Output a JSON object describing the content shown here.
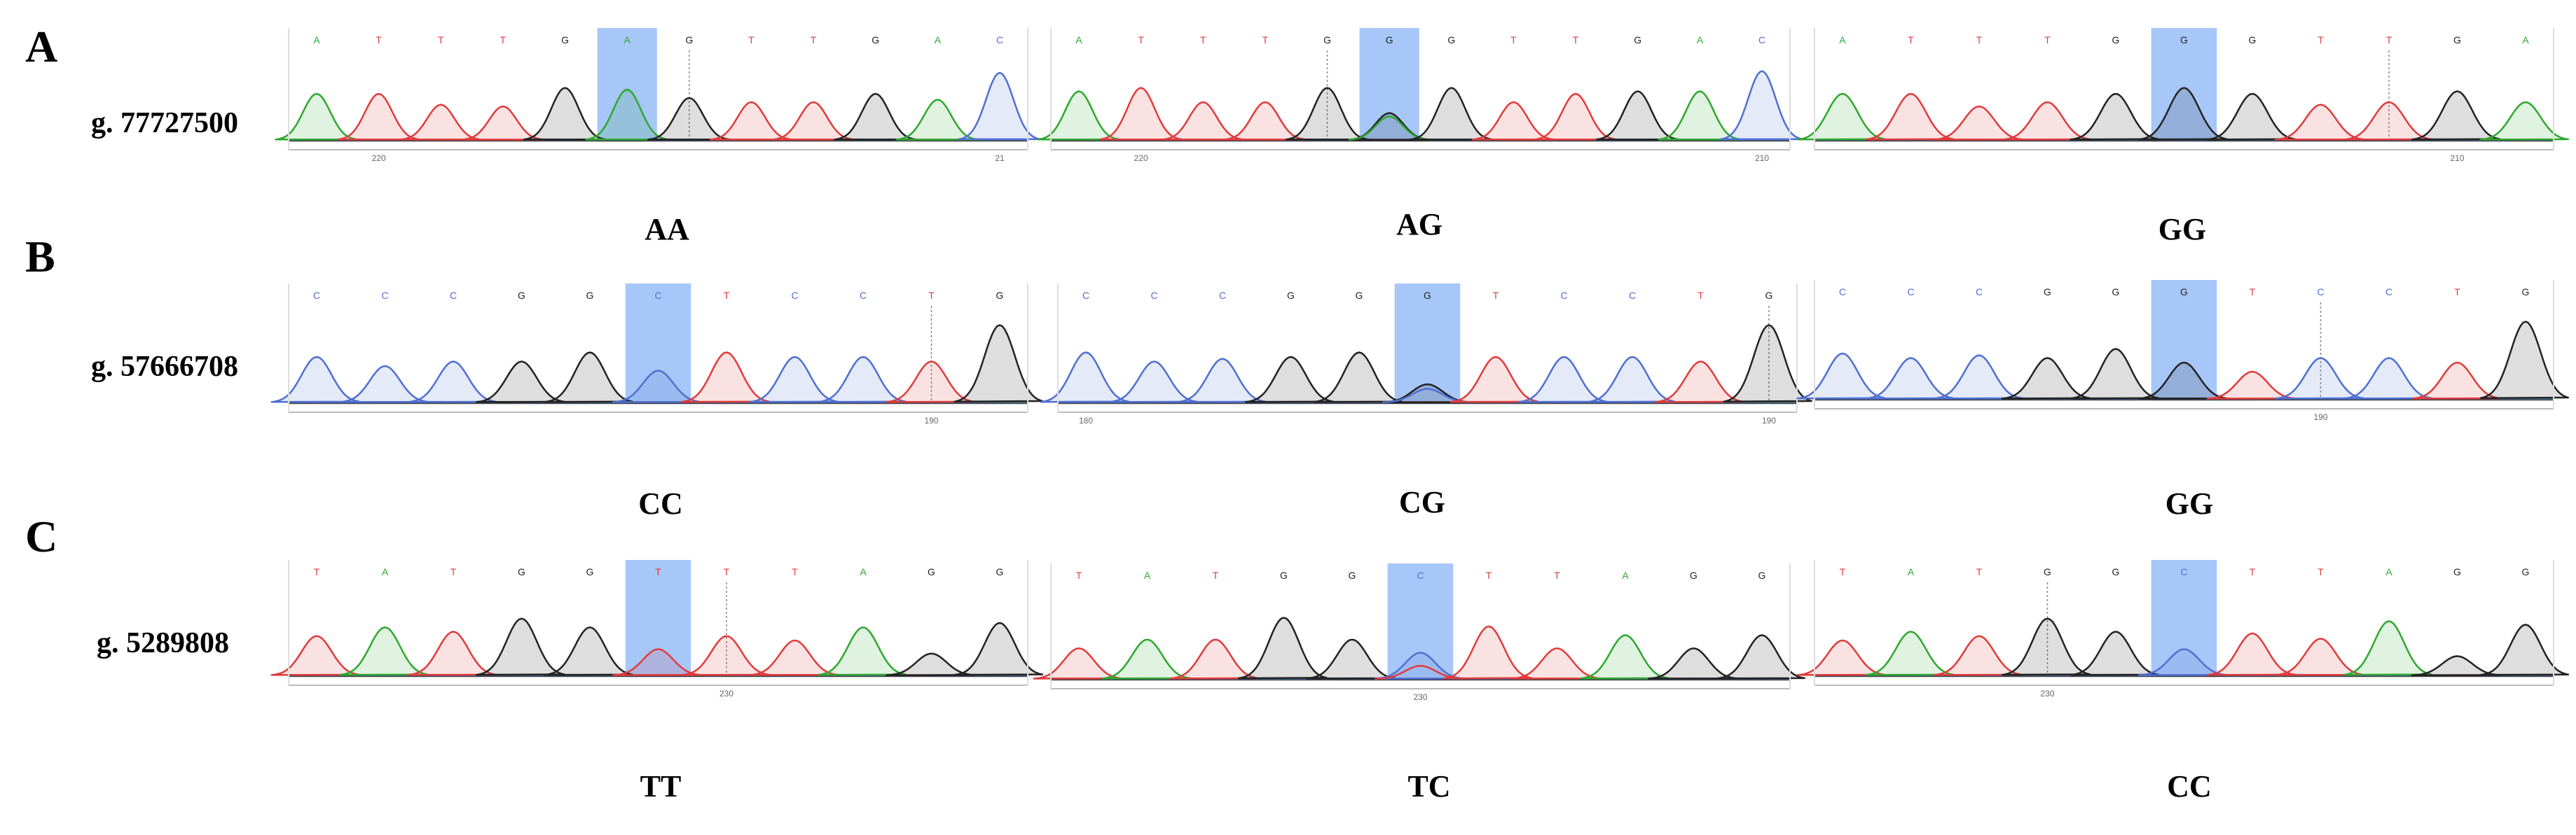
{
  "colors": {
    "A": "#2ea82e",
    "C": "#4f6fd1",
    "G": "#222222",
    "T": "#e03b3b",
    "highlight": "#8ab4f5"
  },
  "rows": [
    {
      "letter": "A",
      "locus": "g. 77727500",
      "chromatograms": [
        {
          "genotype": "AA",
          "bases": [
            "A",
            "T",
            "T",
            "T",
            "G",
            "A",
            "G",
            "T",
            "T",
            "G",
            "A",
            "C"
          ],
          "highlight_index": 5,
          "dotted_index": 6,
          "ticks": [
            {
              "index": 1,
              "label": "220"
            },
            {
              "index": 11,
              "label": "21"
            }
          ],
          "peaks": [
            {
              "base": "A",
              "h": 0.55
            },
            {
              "base": "T",
              "h": 0.55
            },
            {
              "base": "T",
              "h": 0.42
            },
            {
              "base": "T",
              "h": 0.4
            },
            {
              "base": "G",
              "h": 0.62
            },
            {
              "base": "A",
              "h": 0.6
            },
            {
              "base": "G",
              "h": 0.5
            },
            {
              "base": "T",
              "h": 0.45
            },
            {
              "base": "T",
              "h": 0.45
            },
            {
              "base": "G",
              "h": 0.55
            },
            {
              "base": "A",
              "h": 0.48
            },
            {
              "base": "C",
              "h": 0.8
            }
          ]
        },
        {
          "genotype": "AG",
          "bases": [
            "A",
            "T",
            "T",
            "T",
            "G",
            "G",
            "G",
            "T",
            "T",
            "G",
            "A",
            "C"
          ],
          "highlight_index": 5,
          "dotted_index": 4,
          "ticks": [
            {
              "index": 1,
              "label": "220"
            },
            {
              "index": 11,
              "label": "210"
            }
          ],
          "peaks": [
            {
              "base": "A",
              "h": 0.58
            },
            {
              "base": "T",
              "h": 0.62
            },
            {
              "base": "T",
              "h": 0.45
            },
            {
              "base": "T",
              "h": 0.45
            },
            {
              "base": "G",
              "h": 0.62
            },
            {
              "base": "G",
              "h": 0.32,
              "secondary": {
                "base": "A",
                "h": 0.28
              }
            },
            {
              "base": "G",
              "h": 0.62
            },
            {
              "base": "T",
              "h": 0.45
            },
            {
              "base": "T",
              "h": 0.55
            },
            {
              "base": "G",
              "h": 0.58
            },
            {
              "base": "A",
              "h": 0.58
            },
            {
              "base": "C",
              "h": 0.82
            }
          ]
        },
        {
          "genotype": "GG",
          "bases": [
            "A",
            "T",
            "T",
            "T",
            "G",
            "G",
            "G",
            "T",
            "T",
            "G",
            "A"
          ],
          "highlight_index": 5,
          "dotted_index": 8,
          "ticks": [
            {
              "index": 9,
              "label": "210"
            }
          ],
          "peaks": [
            {
              "base": "A",
              "h": 0.55
            },
            {
              "base": "T",
              "h": 0.55
            },
            {
              "base": "T",
              "h": 0.4
            },
            {
              "base": "T",
              "h": 0.45
            },
            {
              "base": "G",
              "h": 0.55
            },
            {
              "base": "G",
              "h": 0.62
            },
            {
              "base": "G",
              "h": 0.55
            },
            {
              "base": "T",
              "h": 0.42
            },
            {
              "base": "T",
              "h": 0.45
            },
            {
              "base": "G",
              "h": 0.58
            },
            {
              "base": "A",
              "h": 0.45
            }
          ]
        }
      ]
    },
    {
      "letter": "B",
      "locus": "g. 57666708",
      "chromatograms": [
        {
          "genotype": "CC",
          "bases": [
            "C",
            "C",
            "C",
            "G",
            "G",
            "C",
            "T",
            "C",
            "C",
            "T",
            "G"
          ],
          "highlight_index": 5,
          "dotted_index": 9,
          "ticks": [
            {
              "index": 9,
              "label": "190"
            }
          ],
          "peaks": [
            {
              "base": "C",
              "h": 0.5
            },
            {
              "base": "C",
              "h": 0.4
            },
            {
              "base": "C",
              "h": 0.45
            },
            {
              "base": "G",
              "h": 0.45
            },
            {
              "base": "G",
              "h": 0.55
            },
            {
              "base": "C",
              "h": 0.35
            },
            {
              "base": "T",
              "h": 0.55
            },
            {
              "base": "C",
              "h": 0.5
            },
            {
              "base": "C",
              "h": 0.5
            },
            {
              "base": "T",
              "h": 0.45
            },
            {
              "base": "G",
              "h": 0.85
            }
          ]
        },
        {
          "genotype": "CG",
          "bases": [
            "C",
            "C",
            "C",
            "G",
            "G",
            "G",
            "T",
            "C",
            "C",
            "T",
            "G"
          ],
          "highlight_index": 5,
          "dotted_index": 10,
          "ticks": [
            {
              "index": 0,
              "label": "180"
            },
            {
              "index": 10,
              "label": "190"
            }
          ],
          "peaks": [
            {
              "base": "C",
              "h": 0.55
            },
            {
              "base": "C",
              "h": 0.45
            },
            {
              "base": "C",
              "h": 0.48
            },
            {
              "base": "G",
              "h": 0.5
            },
            {
              "base": "G",
              "h": 0.55
            },
            {
              "base": "G",
              "h": 0.2,
              "secondary": {
                "base": "C",
                "h": 0.15
              }
            },
            {
              "base": "T",
              "h": 0.5
            },
            {
              "base": "C",
              "h": 0.5
            },
            {
              "base": "C",
              "h": 0.5
            },
            {
              "base": "T",
              "h": 0.45
            },
            {
              "base": "G",
              "h": 0.85
            }
          ]
        },
        {
          "genotype": "GG",
          "bases": [
            "C",
            "C",
            "C",
            "G",
            "G",
            "G",
            "T",
            "C",
            "C",
            "T",
            "G"
          ],
          "highlight_index": 5,
          "dotted_index": 7,
          "ticks": [
            {
              "index": 7,
              "label": "190"
            }
          ],
          "peaks": [
            {
              "base": "C",
              "h": 0.5
            },
            {
              "base": "C",
              "h": 0.45
            },
            {
              "base": "C",
              "h": 0.48
            },
            {
              "base": "G",
              "h": 0.45
            },
            {
              "base": "G",
              "h": 0.55
            },
            {
              "base": "G",
              "h": 0.4
            },
            {
              "base": "T",
              "h": 0.3
            },
            {
              "base": "C",
              "h": 0.45
            },
            {
              "base": "C",
              "h": 0.45
            },
            {
              "base": "T",
              "h": 0.4
            },
            {
              "base": "G",
              "h": 0.85
            }
          ]
        }
      ]
    },
    {
      "letter": "C",
      "locus": "g. 5289808",
      "chromatograms": [
        {
          "genotype": "TT",
          "bases": [
            "T",
            "A",
            "T",
            "G",
            "G",
            "T",
            "T",
            "T",
            "A",
            "G",
            "G"
          ],
          "highlight_index": 5,
          "dotted_index": 6,
          "ticks": [
            {
              "index": 6,
              "label": "230"
            }
          ],
          "peaks": [
            {
              "base": "T",
              "h": 0.45
            },
            {
              "base": "A",
              "h": 0.55
            },
            {
              "base": "T",
              "h": 0.5
            },
            {
              "base": "G",
              "h": 0.65
            },
            {
              "base": "G",
              "h": 0.55
            },
            {
              "base": "T",
              "h": 0.3
            },
            {
              "base": "T",
              "h": 0.45
            },
            {
              "base": "T",
              "h": 0.4
            },
            {
              "base": "A",
              "h": 0.55
            },
            {
              "base": "G",
              "h": 0.25
            },
            {
              "base": "G",
              "h": 0.6
            }
          ]
        },
        {
          "genotype": "TC",
          "bases": [
            "T",
            "A",
            "T",
            "G",
            "G",
            "C",
            "T",
            "T",
            "A",
            "G",
            "G"
          ],
          "highlight_index": 5,
          "dotted_index": 5,
          "ticks": [
            {
              "index": 5,
              "label": "230"
            }
          ],
          "peaks": [
            {
              "base": "T",
              "h": 0.35
            },
            {
              "base": "A",
              "h": 0.45
            },
            {
              "base": "T",
              "h": 0.45
            },
            {
              "base": "G",
              "h": 0.7
            },
            {
              "base": "G",
              "h": 0.45
            },
            {
              "base": "C",
              "h": 0.3,
              "secondary": {
                "base": "T",
                "h": 0.15
              }
            },
            {
              "base": "T",
              "h": 0.6
            },
            {
              "base": "T",
              "h": 0.35
            },
            {
              "base": "A",
              "h": 0.5
            },
            {
              "base": "G",
              "h": 0.35
            },
            {
              "base": "G",
              "h": 0.5
            }
          ]
        },
        {
          "genotype": "CC",
          "bases": [
            "T",
            "A",
            "T",
            "G",
            "G",
            "C",
            "T",
            "T",
            "A",
            "G",
            "G"
          ],
          "highlight_index": 5,
          "dotted_index": 3,
          "ticks": [
            {
              "index": 3,
              "label": "230"
            }
          ],
          "peaks": [
            {
              "base": "T",
              "h": 0.4
            },
            {
              "base": "A",
              "h": 0.5
            },
            {
              "base": "T",
              "h": 0.45
            },
            {
              "base": "G",
              "h": 0.65
            },
            {
              "base": "G",
              "h": 0.5
            },
            {
              "base": "C",
              "h": 0.3
            },
            {
              "base": "T",
              "h": 0.48
            },
            {
              "base": "T",
              "h": 0.42
            },
            {
              "base": "A",
              "h": 0.62
            },
            {
              "base": "G",
              "h": 0.22
            },
            {
              "base": "G",
              "h": 0.58
            }
          ]
        }
      ]
    }
  ]
}
